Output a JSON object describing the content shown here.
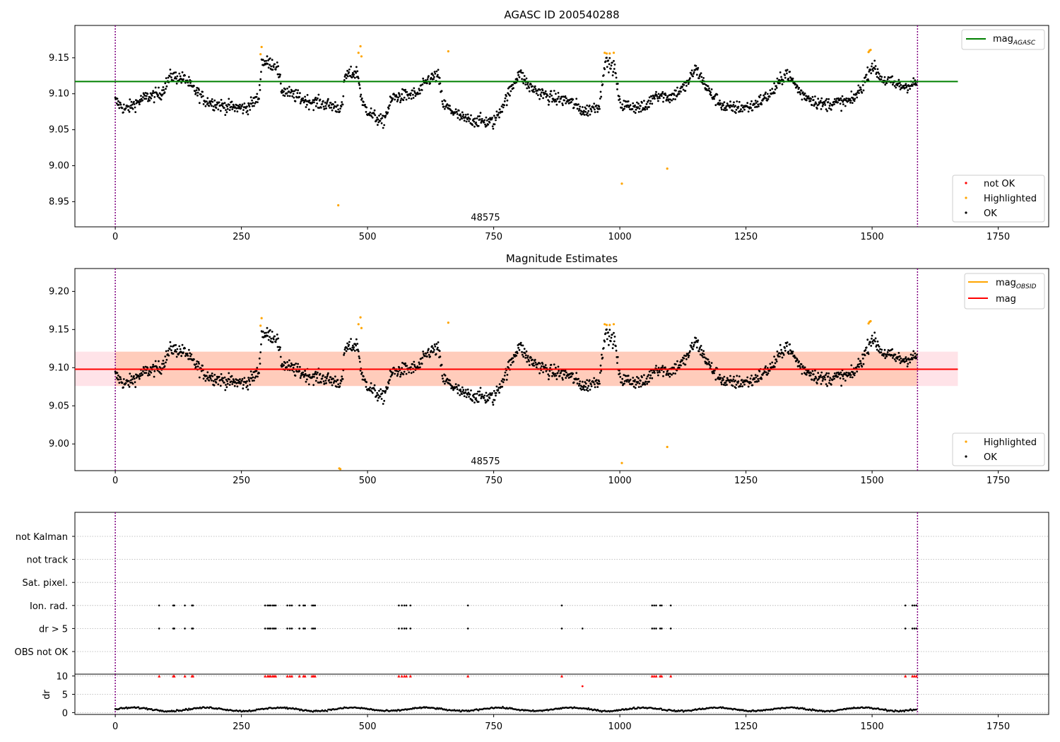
{
  "chart_data": [
    {
      "type": "scatter",
      "title": "AGASC ID 200540288",
      "xlim": [
        -80,
        1850
      ],
      "ylim": [
        8.915,
        9.195
      ],
      "x_ticks": [
        0,
        250,
        500,
        750,
        1000,
        1250,
        1500,
        1750
      ],
      "y_ticks": [
        8.95,
        9.0,
        9.05,
        9.1,
        9.15
      ],
      "y_tick_labels": [
        "8.95",
        "9.00",
        "9.05",
        "9.10",
        "9.15"
      ],
      "obs_boundaries": [
        0,
        1590
      ],
      "obs_label": "48575",
      "obs_label_x": 800,
      "reference_line": {
        "name_html": "mag<sub>AGASC</sub>",
        "name_main": "mag",
        "name_sub": "AGASC",
        "value": 9.117,
        "x_range": [
          -80,
          1670
        ],
        "color": "#008000"
      },
      "legend_lines": [
        {
          "main": "mag",
          "sub": "AGASC",
          "color": "#008000"
        }
      ],
      "legend_points": [
        {
          "name": "not OK",
          "color": "#ff0000"
        },
        {
          "name": "Highlighted",
          "color": "#ffa500"
        },
        {
          "name": "OK",
          "color": "#000000"
        }
      ],
      "series_ok": {
        "name": "OK",
        "color": "#000000",
        "n": 1590,
        "segments": [
          [
            0,
            9.09
          ],
          [
            20,
            9.078
          ],
          [
            60,
            9.095
          ],
          [
            90,
            9.1
          ],
          [
            110,
            9.125
          ],
          [
            140,
            9.12
          ],
          [
            150,
            9.11
          ],
          [
            180,
            9.09
          ],
          [
            220,
            9.082
          ],
          [
            260,
            9.08
          ],
          [
            285,
            9.095
          ],
          [
            290,
            9.145
          ],
          [
            320,
            9.14
          ],
          [
            330,
            9.105
          ],
          [
            380,
            9.09
          ],
          [
            420,
            9.085
          ],
          [
            450,
            9.08
          ],
          [
            455,
            9.125
          ],
          [
            480,
            9.13
          ],
          [
            490,
            9.085
          ],
          [
            510,
            9.07
          ],
          [
            530,
            9.06
          ],
          [
            550,
            9.095
          ],
          [
            600,
            9.1
          ],
          [
            620,
            9.12
          ],
          [
            640,
            9.125
          ],
          [
            650,
            9.085
          ],
          [
            670,
            9.075
          ],
          [
            690,
            9.065
          ],
          [
            750,
            9.06
          ],
          [
            780,
            9.1
          ],
          [
            800,
            9.13
          ],
          [
            820,
            9.11
          ],
          [
            860,
            9.095
          ],
          [
            900,
            9.09
          ],
          [
            930,
            9.075
          ],
          [
            960,
            9.085
          ],
          [
            970,
            9.145
          ],
          [
            990,
            9.135
          ],
          [
            1000,
            9.085
          ],
          [
            1050,
            9.08
          ],
          [
            1070,
            9.1
          ],
          [
            1100,
            9.095
          ],
          [
            1130,
            9.11
          ],
          [
            1150,
            9.135
          ],
          [
            1180,
            9.1
          ],
          [
            1210,
            9.08
          ],
          [
            1260,
            9.082
          ],
          [
            1300,
            9.1
          ],
          [
            1330,
            9.13
          ],
          [
            1360,
            9.1
          ],
          [
            1400,
            9.085
          ],
          [
            1460,
            9.09
          ],
          [
            1480,
            9.11
          ],
          [
            1500,
            9.14
          ],
          [
            1520,
            9.12
          ],
          [
            1560,
            9.11
          ],
          [
            1590,
            9.115
          ]
        ]
      },
      "series_highlighted": {
        "name": "Highlighted",
        "color": "#ffa500",
        "points": [
          [
            288,
            9.155
          ],
          [
            290,
            9.165
          ],
          [
            442,
            8.945
          ],
          [
            482,
            9.157
          ],
          [
            486,
            9.166
          ],
          [
            488,
            9.152
          ],
          [
            660,
            9.159
          ],
          [
            970,
            9.157
          ],
          [
            974,
            9.156
          ],
          [
            980,
            9.156
          ],
          [
            988,
            9.157
          ],
          [
            1004,
            8.975
          ],
          [
            1094,
            8.996
          ],
          [
            1493,
            9.158
          ],
          [
            1495,
            9.16
          ],
          [
            1497,
            9.161
          ]
        ]
      }
    },
    {
      "type": "scatter",
      "title": "Magnitude Estimates",
      "xlim": [
        -80,
        1850
      ],
      "ylim": [
        8.965,
        9.23
      ],
      "x_ticks": [
        0,
        250,
        500,
        750,
        1000,
        1250,
        1500,
        1750
      ],
      "y_ticks": [
        9.0,
        9.05,
        9.1,
        9.15,
        9.2
      ],
      "y_tick_labels": [
        "9.00",
        "9.05",
        "9.10",
        "9.15",
        "9.20"
      ],
      "obs_boundaries": [
        0,
        1590
      ],
      "obs_label": "48575",
      "obs_label_x": 800,
      "mag_line": {
        "value": 9.098,
        "x_range": [
          -80,
          1670
        ],
        "color": "#ff0000"
      },
      "mag_obsid_band": {
        "low": 9.076,
        "high": 9.121,
        "x_range": [
          0,
          1590
        ],
        "color": "#ffa500"
      },
      "mag_band": {
        "low": 9.076,
        "high": 9.121,
        "x_range": [
          -80,
          1670
        ],
        "color": "#ff0000"
      },
      "legend_lines": [
        {
          "main": "mag",
          "sub": "OBSID",
          "color": "#ffa500"
        },
        {
          "main": "mag",
          "sub": "",
          "color": "#ff0000"
        }
      ],
      "legend_points": [
        {
          "name": "Highlighted",
          "color": "#ffa500"
        },
        {
          "name": "OK",
          "color": "#000000"
        }
      ],
      "series_highlighted": {
        "name": "Highlighted",
        "color": "#ffa500",
        "points": [
          [
            288,
            9.155
          ],
          [
            290,
            9.165
          ],
          [
            444,
            8.968
          ],
          [
            446,
            8.967
          ],
          [
            482,
            9.157
          ],
          [
            486,
            9.166
          ],
          [
            488,
            9.152
          ],
          [
            660,
            9.159
          ],
          [
            970,
            9.157
          ],
          [
            974,
            9.156
          ],
          [
            980,
            9.156
          ],
          [
            988,
            9.157
          ],
          [
            1004,
            8.975
          ],
          [
            1094,
            8.996
          ],
          [
            1493,
            9.158
          ],
          [
            1495,
            9.16
          ],
          [
            1497,
            9.161
          ]
        ]
      }
    },
    {
      "type": "scatter",
      "xlim": [
        -80,
        1850
      ],
      "x_ticks": [
        0,
        250,
        500,
        750,
        1000,
        1250,
        1500,
        1750
      ],
      "flag_rows": [
        "not Kalman",
        "not track",
        "Sat. pixel.",
        "Ion. rad.",
        "dr > 5",
        "OBS not OK"
      ],
      "flag_points": {
        "Ion. rad.": [
          87,
          115,
          117,
          138,
          152,
          154,
          297,
          302,
          305,
          308,
          312,
          315,
          318,
          341,
          346,
          350,
          365,
          373,
          376,
          390,
          393,
          396,
          562,
          568,
          573,
          577,
          585,
          699,
          885,
          1064,
          1068,
          1072,
          1080,
          1083,
          1101,
          1566,
          1580,
          1584,
          1588
        ],
        "dr > 5": [
          87,
          115,
          117,
          138,
          152,
          154,
          297,
          302,
          305,
          308,
          312,
          315,
          318,
          341,
          346,
          350,
          365,
          373,
          376,
          390,
          393,
          396,
          562,
          568,
          573,
          577,
          585,
          699,
          885,
          926,
          1064,
          1068,
          1072,
          1080,
          1083,
          1101,
          1566,
          1580,
          1584,
          1588
        ]
      },
      "dr_ylabel": "dr",
      "dr_ylim": [
        -0.5,
        10.5
      ],
      "dr_ticks": [
        0,
        5,
        10
      ],
      "dr_clipped": {
        "value": 10,
        "color": "#ff0000",
        "x": [
          87,
          115,
          117,
          138,
          152,
          154,
          297,
          302,
          305,
          308,
          312,
          315,
          318,
          341,
          346,
          350,
          365,
          373,
          376,
          390,
          393,
          396,
          562,
          568,
          573,
          577,
          585,
          699,
          885,
          1064,
          1068,
          1072,
          1080,
          1083,
          1101,
          1566,
          1580,
          1584,
          1588
        ]
      },
      "dr_outliers": [
        [
          926,
          7.2
        ]
      ],
      "dr_baseline": {
        "mean": 0.9,
        "amplitude": 0.45,
        "color": "#000000"
      }
    }
  ]
}
